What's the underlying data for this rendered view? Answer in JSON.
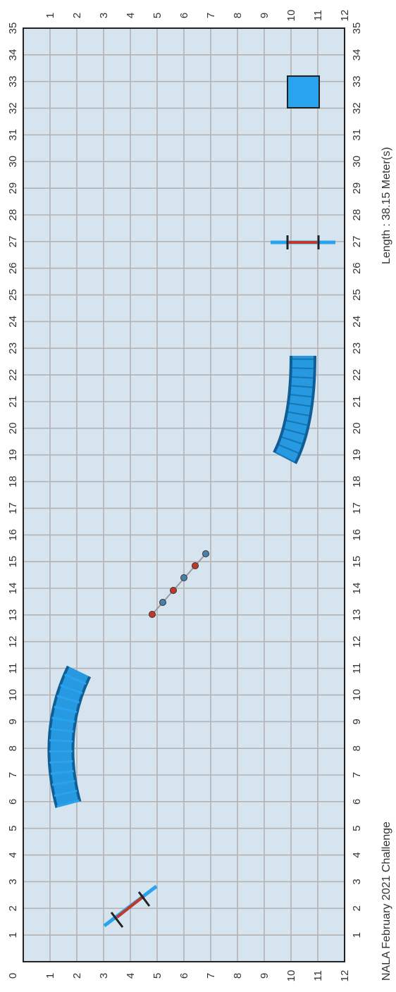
{
  "course": {
    "title": "NALA February 2021 Challenge",
    "length_label": "Length : 38.15 Meter(s)",
    "long_axis": {
      "min": 0,
      "max": 35,
      "step": 1
    },
    "short_axis": {
      "min": 0,
      "max": 12,
      "step": 1
    },
    "colors": {
      "field": "#d6e4ef",
      "grid": "#b3b3b3",
      "border": "#222222",
      "obstacle": "#2aa3ee",
      "obstacle_stroke": "#0f5f96",
      "pole_red": "#c0392b",
      "weave_blue": "#4a7fa8"
    },
    "obstacles": [
      {
        "name": "jump-left",
        "type": "winged-jump",
        "x": 2.2,
        "y": 3.9
      },
      {
        "name": "tunnel-left",
        "type": "curved-tunnel",
        "x_start": 5.9,
        "x_end": 9.2
      },
      {
        "name": "weave-poles",
        "type": "weave-poles",
        "count": 6,
        "x_start": 13.1,
        "x_end": 15.3
      },
      {
        "name": "tunnel-right",
        "type": "curved-tunnel",
        "x_start": 19.1,
        "x_end": 22.7
      },
      {
        "name": "jump-right",
        "type": "winged-jump",
        "x": 27.0,
        "y": 10.4
      },
      {
        "name": "table",
        "type": "table",
        "x_start": 32.0,
        "x_end": 33.2
      }
    ]
  }
}
